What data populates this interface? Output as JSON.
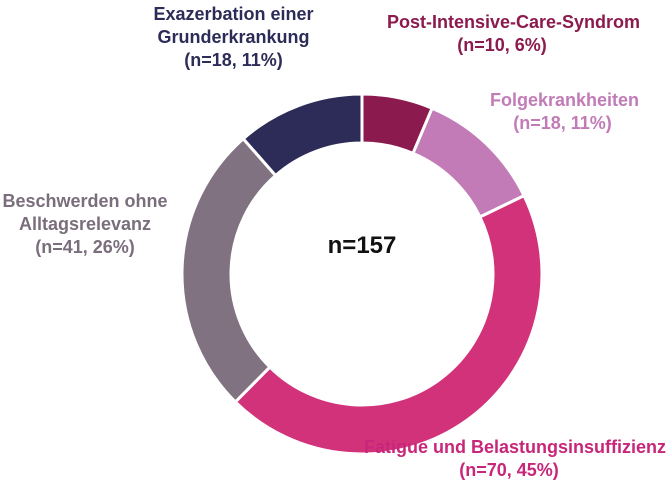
{
  "chart_data": {
    "type": "pie",
    "variant": "donut",
    "center_label": "n=157",
    "start": "top, clockwise",
    "slices": [
      {
        "key": "post",
        "name": "Post-Intensive-Care-Syndrom",
        "name_lines": [
          "Post-Intensive-Care-Syndrom"
        ],
        "value": 10,
        "percent": 6,
        "count_label": "(n=10, 6%)",
        "color": "#8B1A4E",
        "label_color": "#8B1A4E"
      },
      {
        "key": "folge",
        "name": "Folgekrankheiten",
        "name_lines": [
          "Folgekrankheiten"
        ],
        "value": 18,
        "percent": 11,
        "count_label": "(n=18, 11%)",
        "color": "#C27BB7",
        "label_color": "#C27BB7"
      },
      {
        "key": "fatigue",
        "name": "Fatigue und Belastungsinsuffizienz",
        "name_lines": [
          "Fatigue und Belastungsinsuffizienz"
        ],
        "value": 70,
        "percent": 45,
        "count_label": "(n=70, 45%)",
        "color": "#D2327A",
        "label_color": "#C8267A"
      },
      {
        "key": "beschwerden",
        "name": "Beschwerden ohne Alltagsrelevanz",
        "name_lines": [
          "Beschwerden ohne",
          "Alltagsrelevanz"
        ],
        "value": 41,
        "percent": 26,
        "count_label": "(n=41, 26%)",
        "color": "#807281",
        "label_color": "#7A6E7C"
      },
      {
        "key": "exazerbation",
        "name": "Exazerbation einer Grunderkrankung",
        "name_lines": [
          "Exazerbation einer",
          "Grunderkrankung"
        ],
        "value": 18,
        "percent": 11,
        "count_label": "(n=18, 11%)",
        "color": "#2D2C58",
        "label_color": "#2D2C58"
      }
    ]
  }
}
